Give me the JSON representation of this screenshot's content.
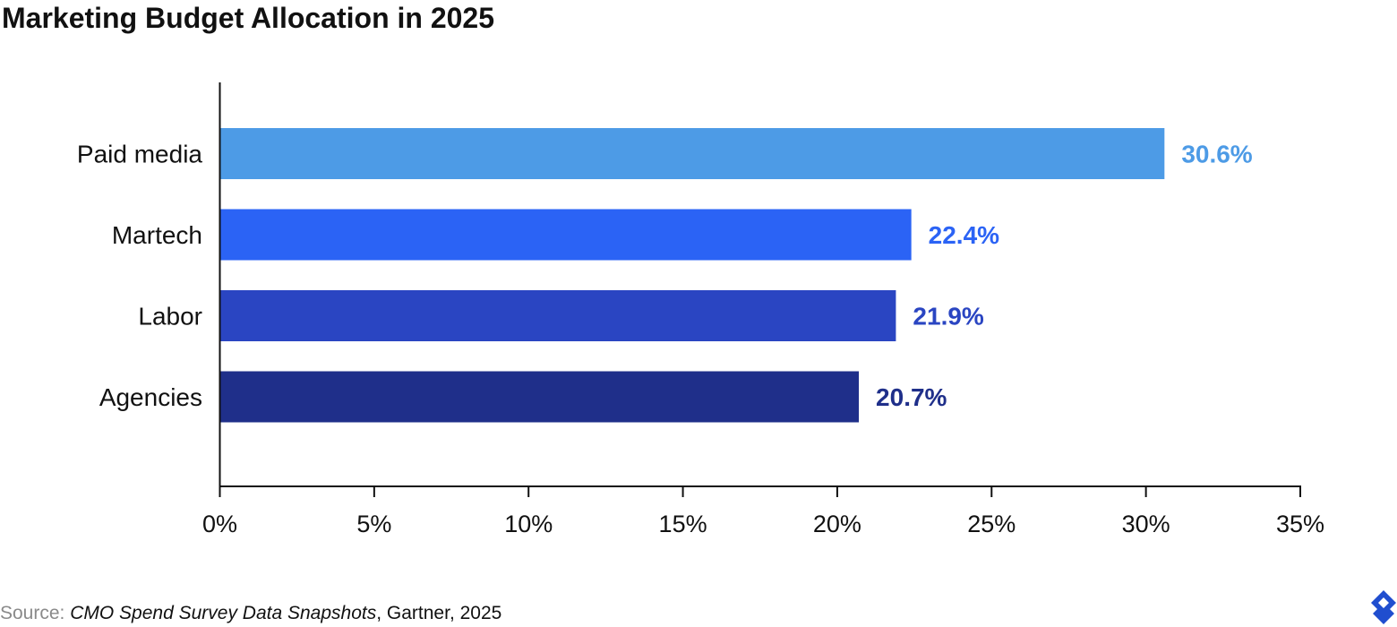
{
  "chart_data": {
    "type": "bar",
    "orientation": "horizontal",
    "title": "Marketing Budget Allocation in 2025",
    "categories": [
      "Paid media",
      "Martech",
      "Labor",
      "Agencies"
    ],
    "values": [
      30.6,
      22.4,
      21.9,
      20.7
    ],
    "value_labels": [
      "30.6%",
      "22.4%",
      "21.9%",
      "20.7%"
    ],
    "bar_colors": [
      "#4d9be6",
      "#2b63f5",
      "#2a45c2",
      "#1f2f8a"
    ],
    "xlim": [
      0,
      35
    ],
    "x_ticks": [
      0,
      5,
      10,
      15,
      20,
      25,
      30,
      35
    ],
    "x_tick_labels": [
      "0%",
      "5%",
      "10%",
      "15%",
      "20%",
      "25%",
      "30%",
      "35%"
    ],
    "xlabel": "",
    "ylabel": "",
    "grid": false,
    "legend": "none"
  },
  "source": {
    "prefix": "Source: ",
    "title": "CMO Spend Survey Data Snapshots",
    "suffix": ", Gartner, 2025"
  },
  "logo": {
    "icon": "toptal-logo-icon",
    "color": "#204ecf"
  }
}
